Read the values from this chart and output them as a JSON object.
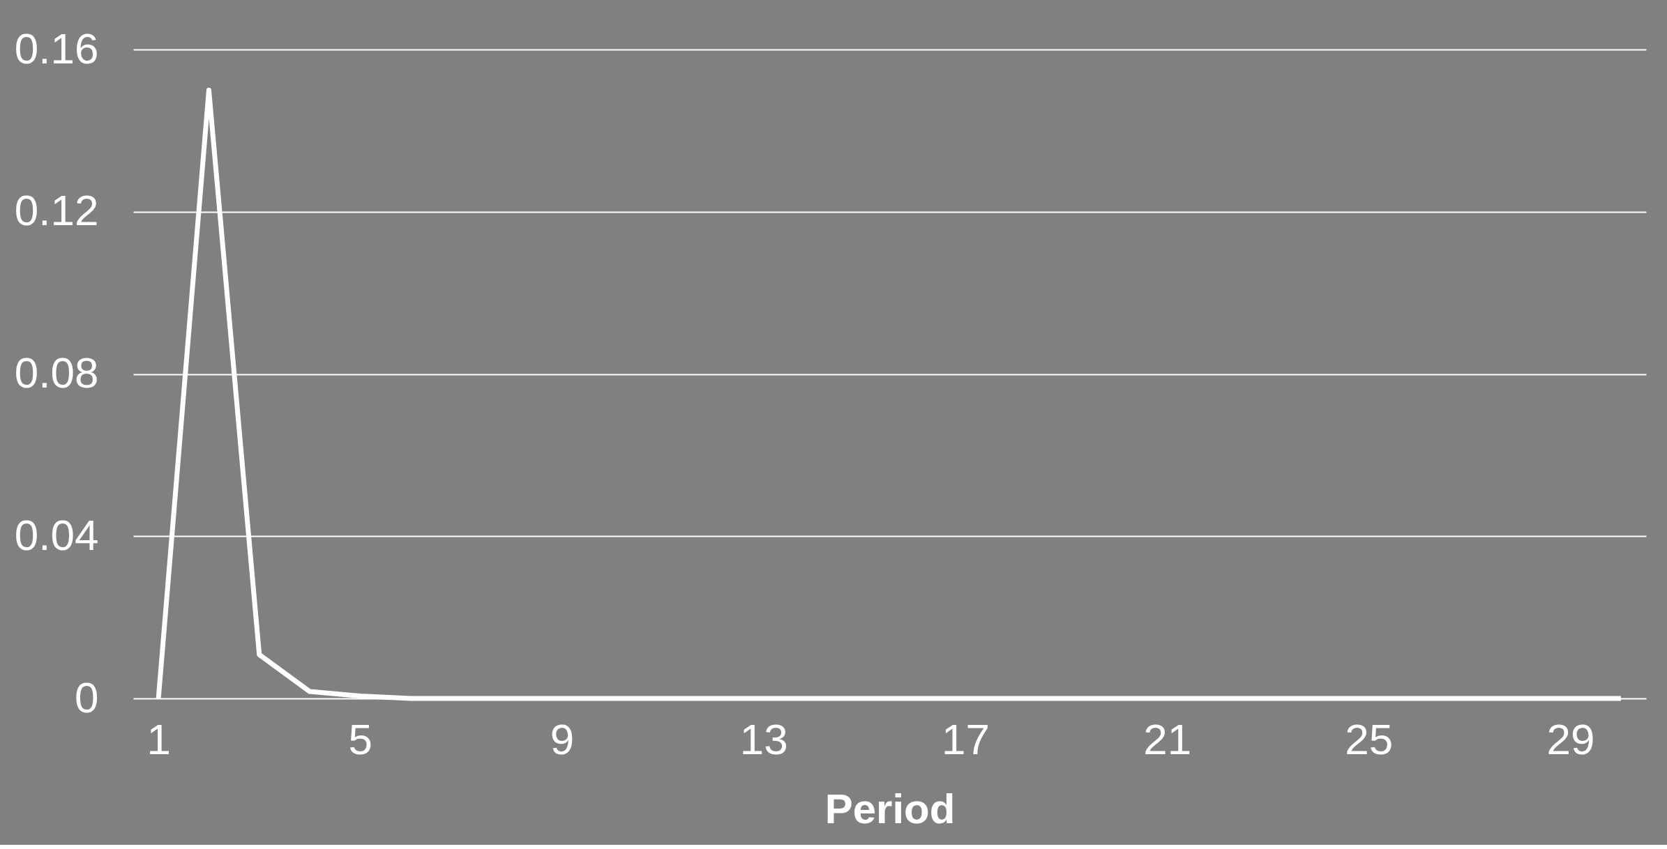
{
  "chart_data": {
    "type": "line",
    "xlabel": "Period",
    "x": [
      1,
      2,
      3,
      4,
      5,
      6,
      7,
      8,
      9,
      10,
      11,
      12,
      13,
      14,
      15,
      16,
      17,
      18,
      19,
      20,
      21,
      22,
      23,
      24,
      25,
      26,
      27,
      28,
      29,
      30
    ],
    "series": [
      {
        "color": "#ffffff",
        "values": [
          0,
          0.15,
          0.0108,
          0.0017,
          0.0006,
          0,
          0,
          0,
          0,
          0,
          0,
          0,
          0,
          0,
          0,
          0,
          0,
          0,
          0,
          0,
          0,
          0,
          0,
          0,
          0,
          0,
          0,
          0,
          0,
          0
        ]
      }
    ],
    "xlim": [
      0.5,
      30.5
    ],
    "xticks": [
      1,
      5,
      9,
      13,
      17,
      21,
      25,
      29
    ],
    "ylim": [
      0,
      0.16
    ],
    "yticks": [
      0,
      0.04,
      0.08,
      0.12,
      0.16
    ],
    "grid": "y",
    "marker": "none",
    "line_style": "solid"
  }
}
